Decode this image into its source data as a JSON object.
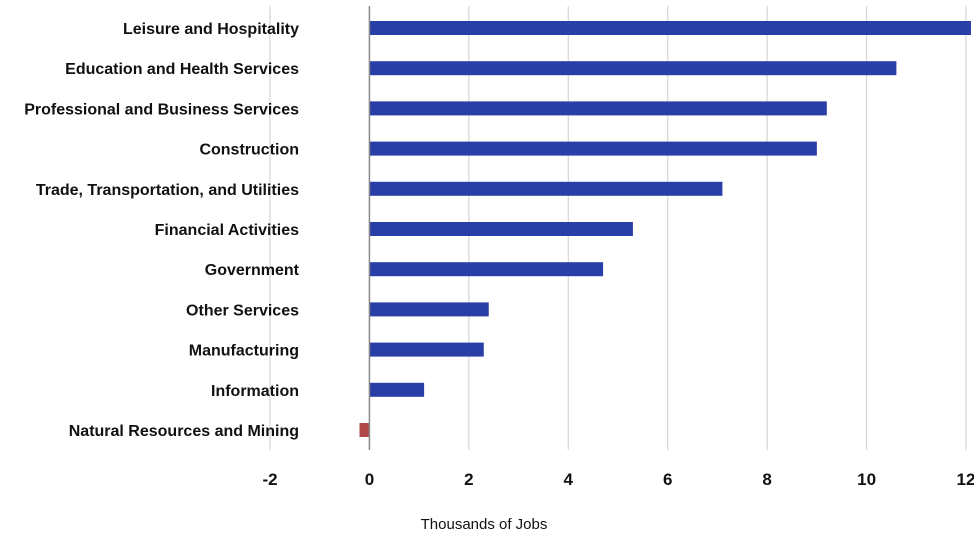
{
  "chart_data": {
    "type": "bar",
    "orientation": "horizontal",
    "title": "",
    "xlabel": "Thousands of Jobs",
    "ylabel": "",
    "xlim": [
      -2,
      12
    ],
    "xticks": [
      -2,
      0,
      2,
      4,
      6,
      8,
      10,
      12
    ],
    "xtick_labels": [
      "-2",
      "0",
      "2",
      "4",
      "6",
      "8",
      "10",
      "12"
    ],
    "grid": "vertical",
    "categories": [
      "Leisure and Hospitality",
      "Education and Health Services",
      "Professional and Business Services",
      "Construction",
      "Trade, Transportation, and Utilities",
      "Financial Activities",
      "Government",
      "Other Services",
      "Manufacturing",
      "Information",
      "Natural Resources and Mining"
    ],
    "values": [
      12.1,
      10.6,
      9.2,
      9.0,
      7.1,
      5.3,
      4.7,
      2.4,
      2.3,
      1.1,
      -0.2
    ],
    "colors": {
      "positive": "#2a3ea8",
      "negative": "#b04a4a",
      "grid": "#d6d6d6",
      "axis": "#8a8a8a"
    }
  }
}
